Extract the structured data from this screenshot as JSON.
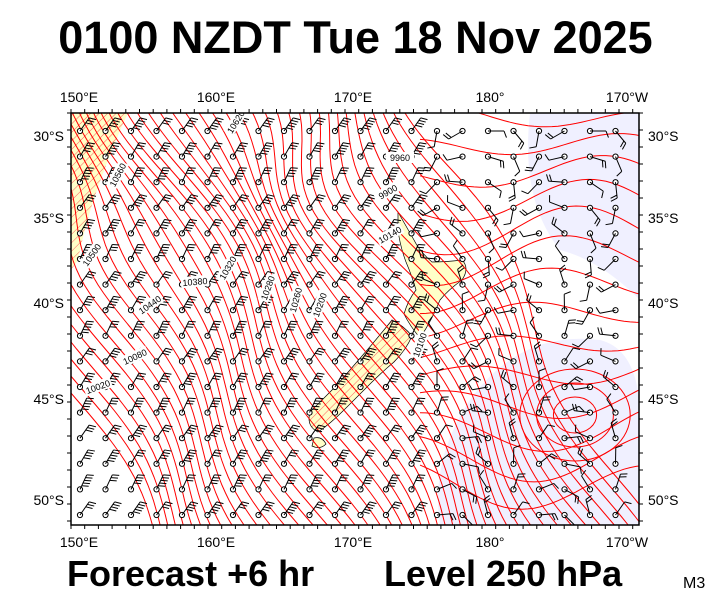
{
  "title": "0100 NZDT Tue 18 Nov 2025",
  "footer": {
    "forecast": "Forecast +6 hr",
    "level": "Level 250 hPa",
    "model": "M3"
  },
  "map": {
    "lon_labels_top": [
      "150°E",
      "160°E",
      "170°E",
      "180°",
      "170°W"
    ],
    "lon_labels_bottom": [
      "150°E",
      "160°E",
      "170°E",
      "180°",
      "170°W"
    ],
    "lat_labels_left": [
      "30°S",
      "35°S",
      "40°S",
      "45°S",
      "50°S"
    ],
    "lat_labels_right": [
      "30°S",
      "35°S",
      "40°S",
      "45°S",
      "50°S"
    ],
    "contour_labels": [
      "10620",
      "10560",
      "10500",
      "10440",
      "10380",
      "10320",
      "10280",
      "10260",
      "10200",
      "10080",
      "10020",
      "9960",
      "9900",
      "10140",
      "10100"
    ],
    "colors": {
      "contour": "#ff0000",
      "land": "#ffffc8",
      "ocean": "#f0f0ff",
      "warm_ocean": "#ffffff",
      "barb": "#000000"
    }
  }
}
